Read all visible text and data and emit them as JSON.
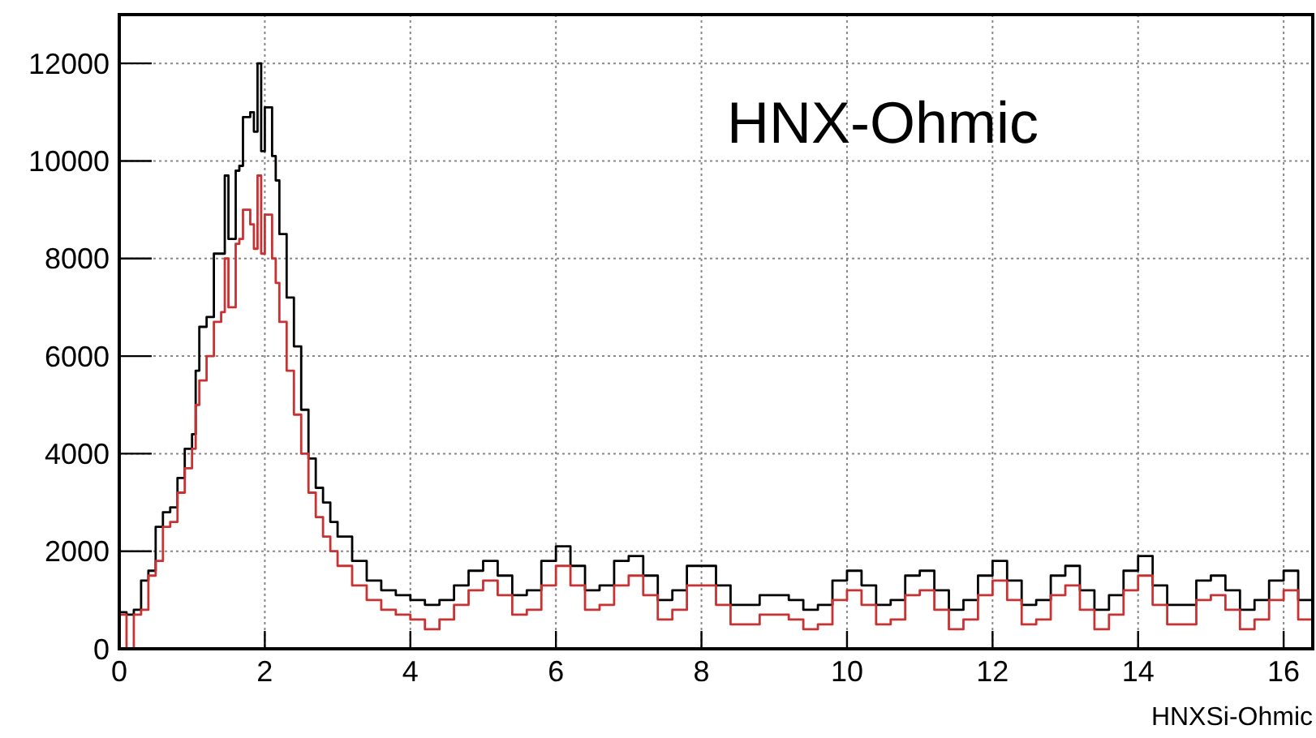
{
  "chart_data": {
    "type": "step",
    "xlabel": "HNXSi-Ohmic",
    "annotations": [
      "HNX-Ohmic"
    ],
    "x": [
      0,
      0.1,
      0.2,
      0.3,
      0.4,
      0.5,
      0.6,
      0.7,
      0.8,
      0.9,
      1.0,
      1.05,
      1.1,
      1.2,
      1.3,
      1.4,
      1.45,
      1.5,
      1.6,
      1.65,
      1.7,
      1.8,
      1.85,
      1.9,
      1.95,
      2.0,
      2.1,
      2.15,
      2.2,
      2.3,
      2.4,
      2.5,
      2.6,
      2.7,
      2.8,
      2.9,
      3.0,
      3.2,
      3.4,
      3.6,
      3.8,
      4.0,
      4.2,
      4.4,
      4.6,
      4.8,
      5.0,
      5.2,
      5.4,
      5.6,
      5.8,
      6.0,
      6.2,
      6.4,
      6.6,
      6.8,
      7.0,
      7.2,
      7.4,
      7.6,
      7.8,
      8.0,
      8.2,
      8.4,
      8.6,
      8.8,
      9.0,
      9.2,
      9.4,
      9.6,
      9.8,
      10.0,
      10.2,
      10.4,
      10.6,
      10.8,
      11.0,
      11.2,
      11.4,
      11.6,
      11.8,
      12.0,
      12.2,
      12.4,
      12.6,
      12.8,
      13.0,
      13.2,
      13.4,
      13.6,
      13.8,
      14.0,
      14.2,
      14.4,
      14.6,
      14.8,
      15.0,
      15.2,
      15.4,
      15.6,
      15.8,
      16.0,
      16.2,
      16.4
    ],
    "series": [
      {
        "color": "#000000",
        "values": [
          750,
          700,
          800,
          1400,
          1600,
          2500,
          2800,
          2900,
          3500,
          4100,
          4400,
          5700,
          6600,
          6800,
          8100,
          8100,
          9700,
          8400,
          9800,
          9900,
          10900,
          11000,
          10600,
          12000,
          10200,
          11100,
          10100,
          9600,
          8500,
          7200,
          6200,
          4900,
          3900,
          3300,
          3000,
          2600,
          2300,
          1800,
          1400,
          1200,
          1100,
          1000,
          900,
          1000,
          1300,
          1600,
          1800,
          1500,
          1100,
          1200,
          1800,
          2100,
          1700,
          1200,
          1300,
          1800,
          1900,
          1500,
          1000,
          1200,
          1700,
          1700,
          1300,
          900,
          900,
          1100,
          1100,
          1000,
          800,
          900,
          1400,
          1600,
          1300,
          900,
          1000,
          1500,
          1600,
          1200,
          800,
          1000,
          1500,
          1800,
          1400,
          900,
          1000,
          1500,
          1700,
          1200,
          800,
          1100,
          1600,
          1900,
          1300,
          900,
          900,
          1400,
          1500,
          1200,
          800,
          1000,
          1400,
          1600,
          1000,
          1000
        ]
      },
      {
        "color": "#c83232",
        "values": [
          700,
          0,
          700,
          800,
          1500,
          1800,
          2500,
          2600,
          3200,
          3700,
          4100,
          5000,
          5500,
          6000,
          6700,
          6900,
          8000,
          7000,
          8300,
          8400,
          9000,
          8700,
          8200,
          9700,
          8100,
          8900,
          8000,
          7500,
          6700,
          5700,
          4800,
          4000,
          3200,
          2700,
          2300,
          2000,
          1700,
          1300,
          1000,
          800,
          700,
          600,
          400,
          600,
          900,
          1200,
          1400,
          1100,
          700,
          800,
          1300,
          1700,
          1300,
          800,
          900,
          1300,
          1500,
          1100,
          600,
          800,
          1300,
          1300,
          900,
          500,
          500,
          700,
          700,
          600,
          400,
          500,
          1000,
          1200,
          900,
          500,
          600,
          1100,
          1200,
          800,
          400,
          600,
          1100,
          1400,
          1000,
          500,
          600,
          1100,
          1300,
          800,
          400,
          700,
          1200,
          1500,
          900,
          500,
          500,
          1000,
          1100,
          800,
          400,
          600,
          1000,
          1200,
          600,
          600
        ]
      }
    ],
    "xlim": [
      0,
      16.4
    ],
    "ylim": [
      0,
      13000
    ],
    "xticks": [
      0,
      2,
      4,
      6,
      8,
      10,
      12,
      14,
      16
    ],
    "yticks": [
      0,
      2000,
      4000,
      6000,
      8000,
      10000,
      12000
    ],
    "grid": true
  }
}
